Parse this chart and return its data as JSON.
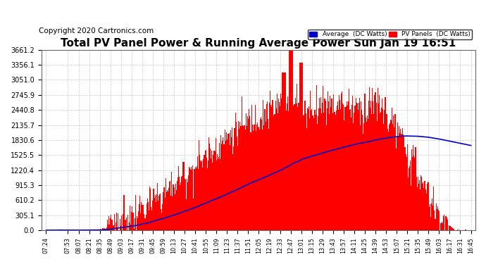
{
  "title": "Total PV Panel Power & Running Average Power Sun Jan 19 16:51",
  "copyright": "Copyright 2020 Cartronics.com",
  "y_ticks": [
    0.0,
    305.1,
    610.2,
    915.3,
    1220.4,
    1525.5,
    1830.6,
    2135.7,
    2440.8,
    2745.9,
    3051.0,
    3356.1,
    3661.2
  ],
  "ylim": [
    0,
    3661.2
  ],
  "background_color": "#ffffff",
  "grid_color": "#bbbbbb",
  "bar_color": "#ff0000",
  "avg_line_color": "#0000cc",
  "legend_avg_color": "#0000cc",
  "legend_pv_color": "#ff0000",
  "title_fontsize": 11,
  "copyright_fontsize": 7.5,
  "x_tick_labels": [
    "07:24",
    "07:53",
    "08:07",
    "08:21",
    "08:35",
    "08:49",
    "09:03",
    "09:17",
    "09:31",
    "09:45",
    "09:59",
    "10:13",
    "10:27",
    "10:41",
    "10:55",
    "11:09",
    "11:23",
    "11:37",
    "11:51",
    "12:05",
    "12:19",
    "12:33",
    "12:47",
    "13:01",
    "13:15",
    "13:29",
    "13:43",
    "13:57",
    "14:11",
    "14:25",
    "14:39",
    "14:53",
    "15:07",
    "15:21",
    "15:35",
    "15:49",
    "16:03",
    "16:17",
    "16:31",
    "16:45"
  ]
}
